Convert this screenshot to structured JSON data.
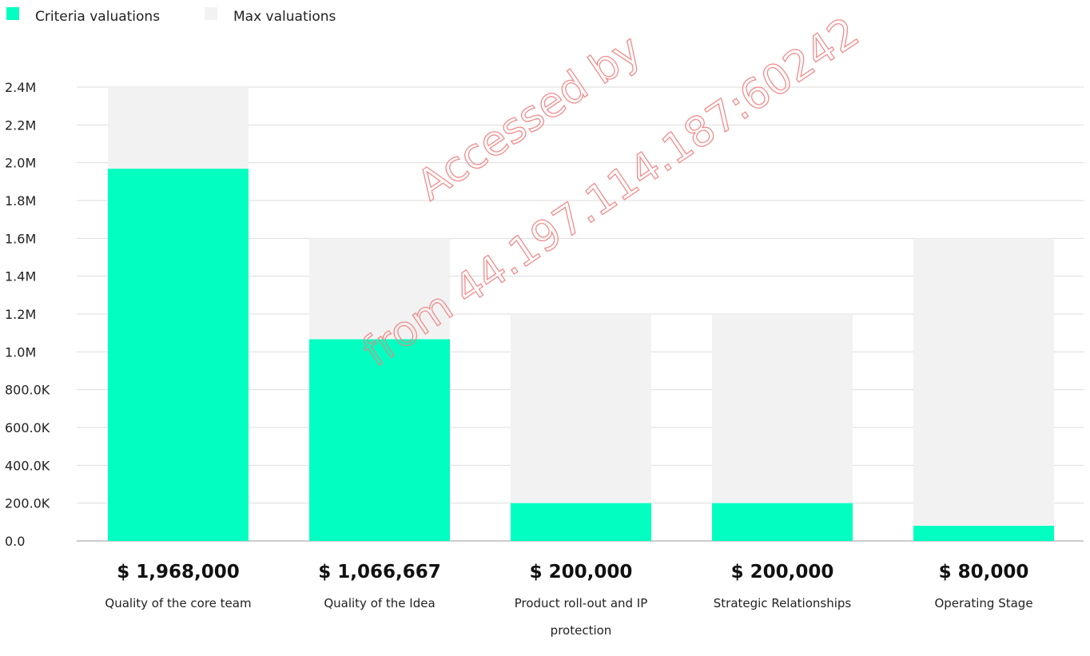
{
  "chart_data": {
    "type": "bar",
    "stacked_overlay": true,
    "categories": [
      "Quality of the core team",
      "Quality of the Idea",
      "Product roll-out and IP protection",
      "Strategic Relationships",
      "Operating Stage"
    ],
    "value_labels": [
      "$ 1,968,000",
      "$ 1,066,667",
      "$ 200,000",
      "$ 200,000",
      "$ 80,000"
    ],
    "series": [
      {
        "name": "Criteria valuations",
        "color": "#00FFC0",
        "values": [
          1968000,
          1066667,
          200000,
          200000,
          80000
        ]
      },
      {
        "name": "Max valuations",
        "color": "#F2F2F2",
        "values": [
          2400000,
          1600000,
          1200000,
          1200000,
          1600000
        ]
      }
    ],
    "y_ticks": [
      {
        "value": 0,
        "label": "0.0"
      },
      {
        "value": 200000,
        "label": "200.0K"
      },
      {
        "value": 400000,
        "label": "400.0K"
      },
      {
        "value": 600000,
        "label": "600.0K"
      },
      {
        "value": 800000,
        "label": "800.0K"
      },
      {
        "value": 1000000,
        "label": "1.0M"
      },
      {
        "value": 1200000,
        "label": "1.2M"
      },
      {
        "value": 1400000,
        "label": "1.4M"
      },
      {
        "value": 1600000,
        "label": "1.6M"
      },
      {
        "value": 1800000,
        "label": "1.8M"
      },
      {
        "value": 2000000,
        "label": "2.0M"
      },
      {
        "value": 2200000,
        "label": "2.2M"
      },
      {
        "value": 2400000,
        "label": "2.4M"
      }
    ],
    "ylim": [
      0,
      2400000
    ],
    "grid": true,
    "legend_position": "top-left",
    "title": "",
    "xlabel": "",
    "ylabel": ""
  },
  "watermark": {
    "line1": "Accessed by",
    "line2": "from 44.197.114.187:60242",
    "color": "#F08080"
  }
}
